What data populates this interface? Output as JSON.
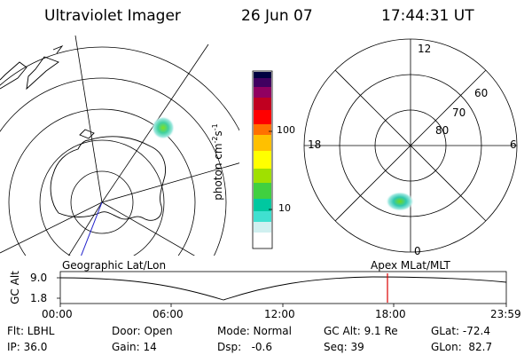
{
  "header": {
    "instrument": "Ultraviolet Imager",
    "date": "26 Jun 07",
    "time": "17:44:31 UT"
  },
  "colorbar": {
    "unit_label": "photon cm",
    "unit_exp1": "-2",
    "unit_s": "s",
    "unit_exp2": "-1",
    "tick_100": "100",
    "tick_10": "10",
    "colors": [
      "#ffffff",
      "#d0f0f0",
      "#40e0d0",
      "#00c8a0",
      "#40d040",
      "#a0e000",
      "#ffff00",
      "#ffc000",
      "#ff7000",
      "#ff0000",
      "#c00020",
      "#900060",
      "#400060",
      "#000040"
    ]
  },
  "polar_plot": {
    "mlt_labels": {
      "top": "12",
      "left": "18",
      "right": "6",
      "bottom": "0"
    },
    "lat_labels": [
      "60",
      "70",
      "80"
    ]
  },
  "timeline": {
    "label_left": "Geographic Lat/Lon",
    "label_right": "Apex MLat/MLT",
    "axis_label": "GC Alt",
    "y_ticks": [
      "9.0",
      "1.8"
    ],
    "x_ticks": [
      "00:00",
      "06:00",
      "12:00",
      "18:00",
      "23:59"
    ],
    "marker_color": "#dd0000"
  },
  "info": {
    "row1": {
      "flt": "Flt: LBHL",
      "door": "Door: Open",
      "mode": "Mode: Normal",
      "gcalt": "GC Alt: 9.1 Re",
      "glat": "GLat: -72.4"
    },
    "row2": {
      "ip": "IP: 36.0",
      "gain": "Gain: 14",
      "dsp": "Dsp:   -0.6",
      "seq": "Seq: 39",
      "glon": "GLon:  82.7"
    }
  }
}
